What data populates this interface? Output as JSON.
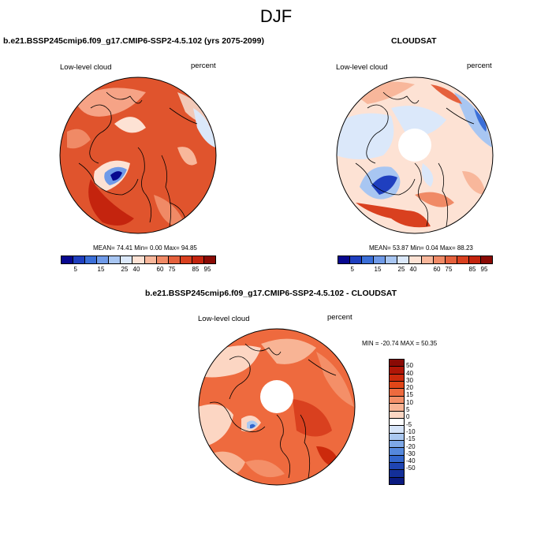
{
  "season": "DJF",
  "panels": [
    {
      "title": "b.e21.BSSP245cmip6.f09_g17.CMIP6-SSP2-4.5.102 (yrs 2075-2099)",
      "variable": "Low-level cloud",
      "units": "percent",
      "stats": "MEAN=  74.41  Min=   0.00  Max=  94.85"
    },
    {
      "title": "CLOUDSAT",
      "variable": "Low-level cloud",
      "units": "percent",
      "stats": "MEAN=  53.87  Min=   0.04  Max=  88.23"
    },
    {
      "title": "b.e21.BSSP245cmip6.f09_g17.CMIP6-SSP2-4.5.102 - CLOUDSAT",
      "variable": "Low-level cloud",
      "units": "percent",
      "stats": "MIN = -20.74 MAX =  50.35"
    }
  ],
  "colorbar_abs": {
    "colors": [
      "#08088f",
      "#1f3fbf",
      "#3b6fd8",
      "#6f9ae8",
      "#a8c6f2",
      "#dbe8fa",
      "#fde2d4",
      "#f8b79b",
      "#f08a66",
      "#e5613d",
      "#d9401f",
      "#c4240e",
      "#8a0a05"
    ],
    "labels": [
      "5",
      "15",
      "25",
      "40",
      "60",
      "75",
      "85",
      "95"
    ]
  },
  "colorbar_diff": {
    "colors": [
      "#8a0a05",
      "#b01607",
      "#cc2a0c",
      "#e04618",
      "#ee6a3e",
      "#f48f68",
      "#f8b495",
      "#fcd6c3",
      "#ffffff",
      "#d6e4f8",
      "#aac8f0",
      "#7ea8e6",
      "#5588dc",
      "#3366cc",
      "#1f45b3",
      "#132f99",
      "#0a1a80"
    ],
    "labels": [
      "50",
      "40",
      "30",
      "20",
      "15",
      "10",
      "5",
      "0",
      "-5",
      "-10",
      "-15",
      "-20",
      "-30",
      "-40",
      "-50"
    ]
  }
}
